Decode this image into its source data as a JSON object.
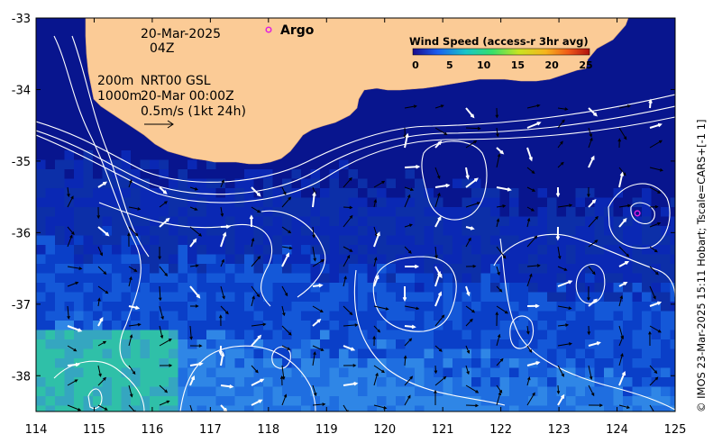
{
  "map": {
    "lon_range": [
      114,
      125
    ],
    "lat_range": [
      -38.5,
      -33
    ],
    "lon_ticks": [
      114,
      115,
      116,
      117,
      118,
      119,
      120,
      121,
      122,
      123,
      124,
      125
    ],
    "lat_ticks": [
      -33,
      -34,
      -35,
      -36,
      -37,
      -38
    ],
    "colors": {
      "land": "#fbcb96",
      "sea_deep": "#08158e",
      "sea_mid": "#0a3fc8",
      "sea_light": "#2f86e6",
      "sea_teal": "#2fc0a8",
      "contour": "#ffffff"
    }
  },
  "labels": {
    "date": "20-Mar-2025",
    "time": "04Z",
    "depth_shallow": "200m",
    "depth_deep": "1000m",
    "source": "NRT00 GSL",
    "source_time": "20-Mar 00:00Z",
    "scale_arrow": "0.5m/s (1kt 24h)",
    "argo_label": "Argo",
    "credit": "© IMOS 23-Mar-2025 15:11 Hobart; Tscale=CARS+[-1 1]"
  },
  "legend": {
    "title": "Wind Speed (access-r 3hr avg)",
    "ticks": [
      "0",
      "5",
      "10",
      "15",
      "20",
      "25"
    ],
    "colors": [
      "#1a0a8c",
      "#1b5ff0",
      "#17c6c8",
      "#36e06a",
      "#c9e320",
      "#f6b51d",
      "#f05a18",
      "#b01010"
    ]
  },
  "argo_floats": [
    {
      "lon": 124.35,
      "lat": -35.73
    }
  ]
}
